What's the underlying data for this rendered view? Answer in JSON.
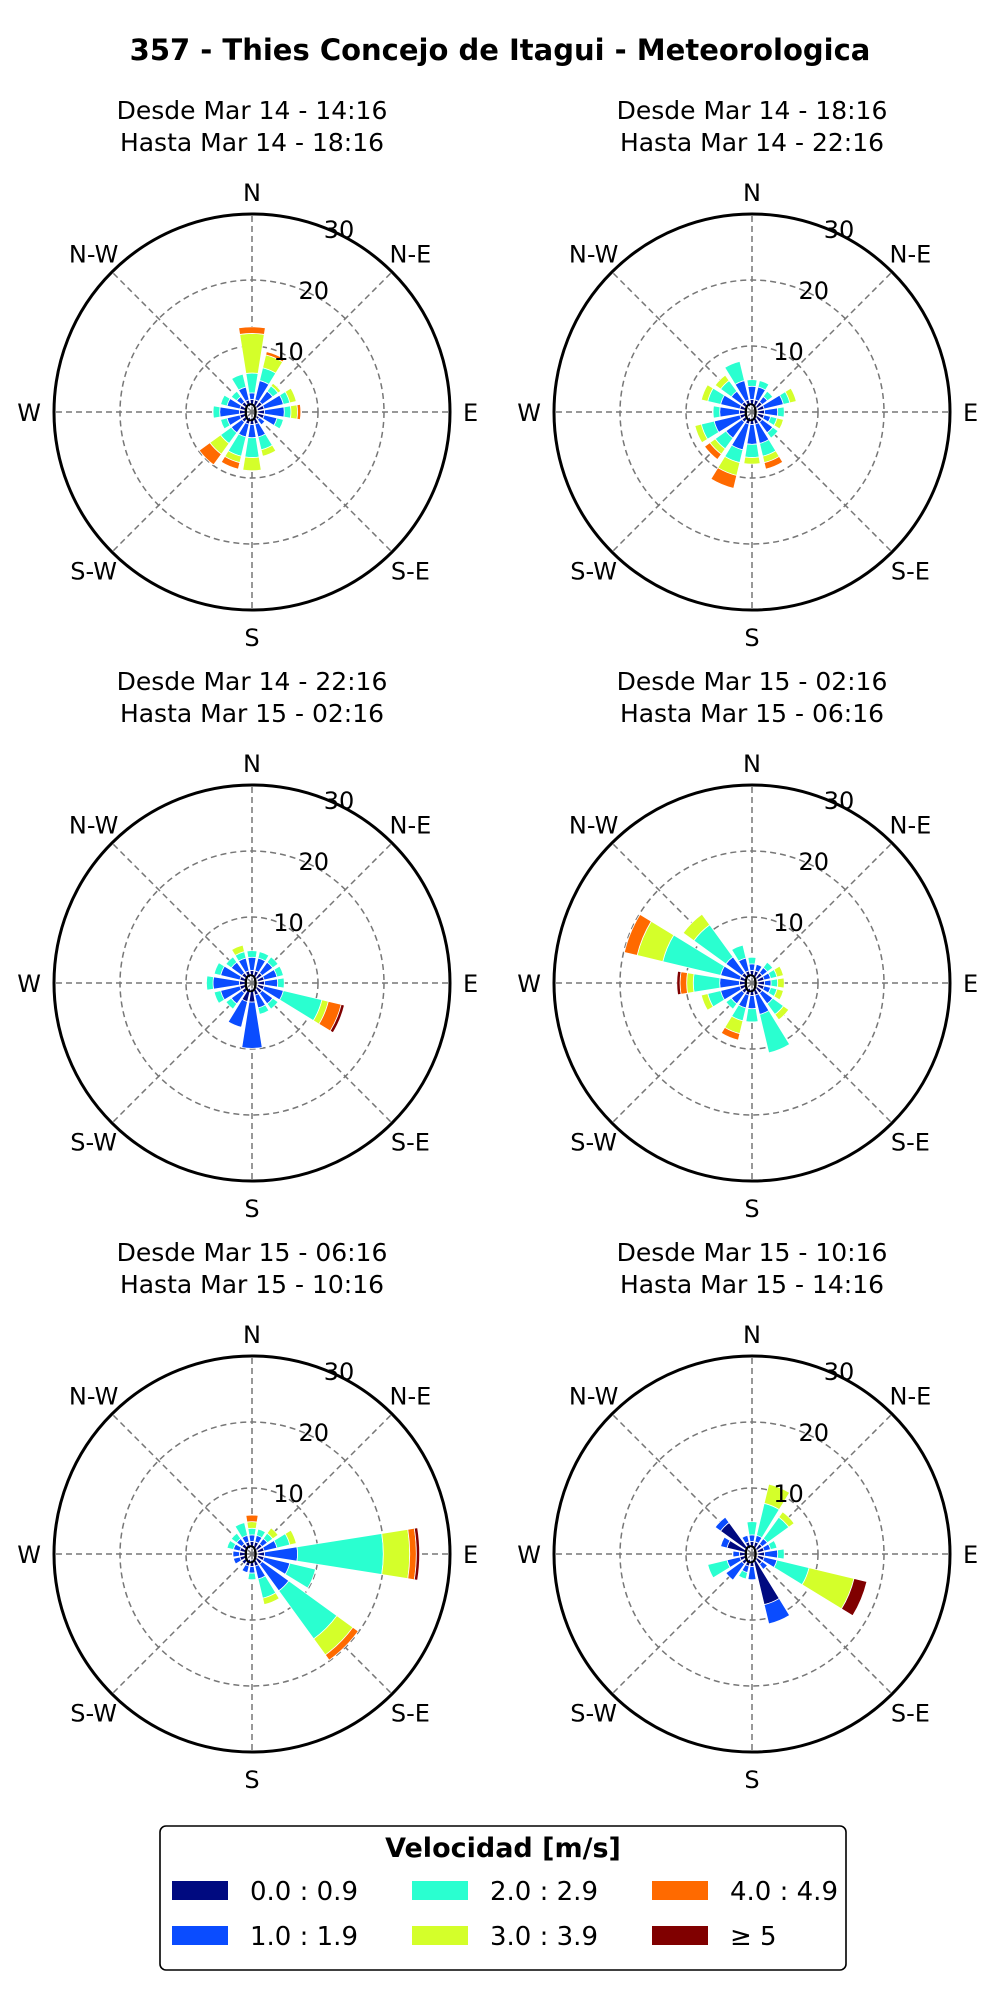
{
  "title": "357 - Thies Concejo de Itagui - Meteorologica",
  "directions": [
    "N",
    "N-E",
    "E",
    "S-E",
    "S",
    "S-W",
    "W",
    "N-W"
  ],
  "ring_labels": [
    "0",
    "10",
    "20",
    "30"
  ],
  "legend": {
    "title": "Velocidad [m/s]",
    "items": [
      {
        "label": "0.0 : 0.9",
        "color": "#000a80"
      },
      {
        "label": "1.0 : 1.9",
        "color": "#0a4cff"
      },
      {
        "label": "2.0 : 2.9",
        "color": "#2affd0"
      },
      {
        "label": "3.0 : 3.9",
        "color": "#d4ff2a"
      },
      {
        "label": "4.0 : 4.9",
        "color": "#ff6a00"
      },
      {
        "label": "≥ 5",
        "color": "#800000"
      }
    ]
  },
  "chart_data": [
    {
      "type": "windrose",
      "title": "Desde Mar 14 - 14:16",
      "subtitle": "Hasta Mar 14 - 18:16",
      "rmax": 30,
      "bins": [
        "0.0 : 0.9",
        "1.0 : 1.9",
        "2.0 : 2.9",
        "3.0 : 3.9",
        "4.0 : 4.9",
        "≥ 5"
      ],
      "sectors": [
        {
          "dir": 0,
          "values": [
            1,
            1,
            3,
            6,
            1,
            0
          ]
        },
        {
          "dir": 22.5,
          "values": [
            1,
            3,
            2,
            2,
            0.5,
            0
          ]
        },
        {
          "dir": 45,
          "values": [
            1,
            2,
            1,
            0.5,
            0,
            0
          ]
        },
        {
          "dir": 67.5,
          "values": [
            1,
            3,
            1,
            1,
            0,
            0
          ]
        },
        {
          "dir": 90,
          "values": [
            1,
            3,
            1,
            1,
            0.5,
            0
          ]
        },
        {
          "dir": 112.5,
          "values": [
            1,
            2,
            1,
            0,
            0,
            0
          ]
        },
        {
          "dir": 135,
          "values": [
            0.5,
            1,
            0,
            0,
            0,
            0
          ]
        },
        {
          "dir": 157.5,
          "values": [
            1,
            2,
            2,
            1,
            0,
            0
          ]
        },
        {
          "dir": 180,
          "values": [
            1,
            2,
            3,
            2,
            0,
            0
          ]
        },
        {
          "dir": 202.5,
          "values": [
            1,
            2,
            3,
            1,
            1,
            0
          ]
        },
        {
          "dir": 225,
          "values": [
            1,
            2,
            2,
            2,
            2,
            0
          ]
        },
        {
          "dir": 247.5,
          "values": [
            1,
            2,
            1,
            0,
            0,
            0
          ]
        },
        {
          "dir": 270,
          "values": [
            1,
            3,
            1,
            0,
            0,
            0
          ]
        },
        {
          "dir": 292.5,
          "values": [
            1,
            2,
            1,
            0,
            0,
            0
          ]
        },
        {
          "dir": 315,
          "values": [
            1,
            1,
            1,
            0,
            0,
            0
          ]
        },
        {
          "dir": 337.5,
          "values": [
            1,
            2,
            2,
            0,
            0,
            0
          ]
        }
      ]
    },
    {
      "type": "windrose",
      "title": "Desde Mar 14 - 18:16",
      "subtitle": "Hasta Mar 14 - 22:16",
      "rmax": 30,
      "bins": [
        "0.0 : 0.9",
        "1.0 : 1.9",
        "2.0 : 2.9",
        "3.0 : 3.9",
        "4.0 : 4.9",
        "≥ 5"
      ],
      "sectors": [
        {
          "dir": 0,
          "values": [
            1,
            2,
            1,
            0,
            0,
            0
          ]
        },
        {
          "dir": 22.5,
          "values": [
            1,
            2,
            1,
            0,
            0,
            0
          ]
        },
        {
          "dir": 45,
          "values": [
            1,
            1,
            1,
            0,
            0,
            0
          ]
        },
        {
          "dir": 67.5,
          "values": [
            1,
            3,
            1,
            1,
            0,
            0
          ]
        },
        {
          "dir": 90,
          "values": [
            1,
            2,
            1,
            0,
            0,
            0
          ]
        },
        {
          "dir": 112.5,
          "values": [
            1,
            1,
            1,
            1,
            0,
            0
          ]
        },
        {
          "dir": 135,
          "values": [
            1,
            2,
            1,
            0,
            0,
            0
          ]
        },
        {
          "dir": 157.5,
          "values": [
            1,
            3,
            2,
            1,
            1,
            0
          ]
        },
        {
          "dir": 180,
          "values": [
            1,
            3,
            2,
            1,
            0,
            0
          ]
        },
        {
          "dir": 202.5,
          "values": [
            1,
            4,
            2,
            2,
            2,
            0
          ]
        },
        {
          "dir": 225,
          "values": [
            1,
            3,
            2,
            1,
            1,
            0
          ]
        },
        {
          "dir": 247.5,
          "values": [
            1,
            4,
            2,
            1,
            0,
            0
          ]
        },
        {
          "dir": 270,
          "values": [
            1,
            3,
            1,
            0,
            0,
            0
          ]
        },
        {
          "dir": 292.5,
          "values": [
            1,
            3,
            2,
            1,
            0,
            0
          ]
        },
        {
          "dir": 315,
          "values": [
            1,
            2,
            2,
            1,
            0,
            0
          ]
        },
        {
          "dir": 337.5,
          "values": [
            1,
            3,
            3,
            0,
            0,
            0
          ]
        }
      ]
    },
    {
      "type": "windrose",
      "title": "Desde Mar 14 - 22:16",
      "subtitle": "Hasta Mar 15 - 02:16",
      "rmax": 30,
      "bins": [
        "0.0 : 0.9",
        "1.0 : 1.9",
        "2.0 : 2.9",
        "3.0 : 3.9",
        "4.0 : 4.9",
        "≥ 5"
      ],
      "sectors": [
        {
          "dir": 0,
          "values": [
            1,
            2,
            1,
            0,
            0,
            0
          ]
        },
        {
          "dir": 22.5,
          "values": [
            1,
            2,
            1,
            0,
            0,
            0
          ]
        },
        {
          "dir": 45,
          "values": [
            1,
            2,
            1,
            0,
            0,
            0
          ]
        },
        {
          "dir": 67.5,
          "values": [
            1,
            2,
            1,
            0,
            0,
            0
          ]
        },
        {
          "dir": 90,
          "values": [
            1,
            2,
            1,
            0,
            0,
            0
          ]
        },
        {
          "dir": 112.5,
          "values": [
            1,
            3,
            6,
            1,
            2,
            0.5
          ]
        },
        {
          "dir": 135,
          "values": [
            1,
            2,
            1,
            0,
            0,
            0
          ]
        },
        {
          "dir": 157.5,
          "values": [
            1,
            2,
            1,
            0,
            0,
            0
          ]
        },
        {
          "dir": 180,
          "values": [
            2,
            7,
            0,
            0,
            0,
            0
          ]
        },
        {
          "dir": 202.5,
          "values": [
            2,
            4,
            0,
            0,
            0,
            0
          ]
        },
        {
          "dir": 225,
          "values": [
            1,
            2,
            1,
            0,
            0,
            0
          ]
        },
        {
          "dir": 247.5,
          "values": [
            1,
            3,
            1,
            0,
            0,
            0
          ]
        },
        {
          "dir": 270,
          "values": [
            1,
            4,
            1,
            0,
            0,
            0
          ]
        },
        {
          "dir": 292.5,
          "values": [
            1,
            3,
            1,
            0,
            0,
            0
          ]
        },
        {
          "dir": 315,
          "values": [
            1,
            2,
            1,
            0,
            0,
            0
          ]
        },
        {
          "dir": 337.5,
          "values": [
            1,
            2,
            1,
            1,
            0,
            0
          ]
        }
      ]
    },
    {
      "type": "windrose",
      "title": "Desde Mar 15 - 02:16",
      "subtitle": "Hasta Mar 15 - 06:16",
      "rmax": 30,
      "bins": [
        "0.0 : 0.9",
        "1.0 : 1.9",
        "2.0 : 2.9",
        "3.0 : 3.9",
        "4.0 : 4.9",
        "≥ 5"
      ],
      "sectors": [
        {
          "dir": 0,
          "values": [
            1,
            1,
            1,
            0,
            0,
            0
          ]
        },
        {
          "dir": 22.5,
          "values": [
            1,
            1,
            0,
            0,
            0,
            0
          ]
        },
        {
          "dir": 45,
          "values": [
            1,
            1,
            1,
            0,
            0,
            0
          ]
        },
        {
          "dir": 67.5,
          "values": [
            1,
            1,
            1,
            1,
            0,
            0
          ]
        },
        {
          "dir": 90,
          "values": [
            1,
            1,
            1,
            1,
            0,
            0
          ]
        },
        {
          "dir": 112.5,
          "values": [
            1,
            1,
            1,
            1,
            0,
            0
          ]
        },
        {
          "dir": 135,
          "values": [
            1,
            2,
            2,
            1,
            0,
            0
          ]
        },
        {
          "dir": 157.5,
          "values": [
            1,
            3,
            6,
            0,
            0,
            0
          ]
        },
        {
          "dir": 180,
          "values": [
            1,
            2,
            2,
            0,
            0,
            0
          ]
        },
        {
          "dir": 202.5,
          "values": [
            1,
            2,
            2,
            2,
            1,
            0
          ]
        },
        {
          "dir": 225,
          "values": [
            1,
            2,
            1,
            0,
            0,
            0
          ]
        },
        {
          "dir": 247.5,
          "values": [
            1,
            3,
            2,
            1,
            0,
            0
          ]
        },
        {
          "dir": 270,
          "values": [
            1,
            3,
            4,
            1,
            1,
            0.5
          ]
        },
        {
          "dir": 292.5,
          "values": [
            1,
            3,
            9,
            4,
            2,
            0
          ]
        },
        {
          "dir": 315,
          "values": [
            1,
            3,
            6,
            2,
            0,
            0
          ]
        },
        {
          "dir": 337.5,
          "values": [
            1,
            2,
            2,
            0,
            0,
            0
          ]
        }
      ]
    },
    {
      "type": "windrose",
      "title": "Desde Mar 15 - 06:16",
      "subtitle": "Hasta Mar 15 - 10:16",
      "rmax": 30,
      "bins": [
        "0.0 : 0.9",
        "1.0 : 1.9",
        "2.0 : 2.9",
        "3.0 : 3.9",
        "4.0 : 4.9",
        "≥ 5"
      ],
      "sectors": [
        {
          "dir": 0,
          "values": [
            1,
            1,
            1,
            1,
            1,
            0
          ]
        },
        {
          "dir": 22.5,
          "values": [
            1,
            1,
            1,
            0,
            0,
            0
          ]
        },
        {
          "dir": 45,
          "values": [
            1,
            1,
            1,
            1,
            0,
            0
          ]
        },
        {
          "dir": 67.5,
          "values": [
            1,
            2,
            2,
            1,
            0,
            0
          ]
        },
        {
          "dir": 90,
          "values": [
            1,
            5,
            13,
            4,
            1,
            0.5
          ]
        },
        {
          "dir": 112.5,
          "values": [
            1,
            4,
            4,
            0,
            0,
            0
          ]
        },
        {
          "dir": 135,
          "values": [
            1,
            5,
            9,
            3,
            1,
            0
          ]
        },
        {
          "dir": 157.5,
          "values": [
            1,
            2,
            3,
            1,
            0,
            0
          ]
        },
        {
          "dir": 180,
          "values": [
            1,
            1,
            1,
            0,
            0,
            0
          ]
        },
        {
          "dir": 202.5,
          "values": [
            1,
            1,
            0,
            0,
            0,
            0
          ]
        },
        {
          "dir": 225,
          "values": [
            1,
            0,
            0,
            0,
            0,
            0
          ]
        },
        {
          "dir": 247.5,
          "values": [
            1,
            1,
            0,
            0,
            0,
            0
          ]
        },
        {
          "dir": 270,
          "values": [
            1,
            1,
            0,
            0,
            0,
            0
          ]
        },
        {
          "dir": 292.5,
          "values": [
            1,
            1,
            1,
            0,
            0,
            0
          ]
        },
        {
          "dir": 315,
          "values": [
            1,
            1,
            1,
            0,
            0,
            0
          ]
        },
        {
          "dir": 337.5,
          "values": [
            1,
            1,
            2,
            0,
            0,
            0
          ]
        }
      ]
    },
    {
      "type": "windrose",
      "title": "Desde Mar 15 - 10:16",
      "subtitle": "Hasta Mar 15 - 14:16",
      "rmax": 30,
      "bins": [
        "0.0 : 0.9",
        "1.0 : 1.9",
        "2.0 : 2.9",
        "3.0 : 3.9",
        "4.0 : 4.9",
        "≥ 5"
      ],
      "sectors": [
        {
          "dir": 0,
          "values": [
            1,
            1,
            2,
            0,
            0,
            0
          ]
        },
        {
          "dir": 22.5,
          "values": [
            1,
            1,
            5,
            3,
            0,
            0
          ]
        },
        {
          "dir": 45,
          "values": [
            1,
            1,
            4,
            1,
            0,
            0
          ]
        },
        {
          "dir": 67.5,
          "values": [
            1,
            1,
            1,
            0,
            0,
            0
          ]
        },
        {
          "dir": 90,
          "values": [
            1,
            2,
            1,
            0,
            0,
            0
          ]
        },
        {
          "dir": 112.5,
          "values": [
            1,
            2,
            5,
            7,
            0,
            2
          ]
        },
        {
          "dir": 135,
          "values": [
            1,
            1,
            0,
            0,
            0,
            0
          ]
        },
        {
          "dir": 157.5,
          "values": [
            7,
            3,
            0,
            0,
            0,
            0
          ]
        },
        {
          "dir": 180,
          "values": [
            1,
            2,
            0,
            0,
            0,
            0
          ]
        },
        {
          "dir": 202.5,
          "values": [
            1,
            1,
            1,
            0,
            0,
            0
          ]
        },
        {
          "dir": 225,
          "values": [
            1,
            3,
            0,
            0,
            0,
            0
          ]
        },
        {
          "dir": 247.5,
          "values": [
            1,
            2,
            3,
            0,
            0,
            0
          ]
        },
        {
          "dir": 270,
          "values": [
            1,
            1,
            0,
            0,
            0,
            0
          ]
        },
        {
          "dir": 292.5,
          "values": [
            3,
            1,
            0,
            0,
            0,
            0
          ]
        },
        {
          "dir": 315,
          "values": [
            5,
            1,
            0,
            0,
            0,
            0
          ]
        },
        {
          "dir": 337.5,
          "values": [
            1,
            1,
            0,
            0,
            0,
            0
          ]
        }
      ]
    }
  ]
}
